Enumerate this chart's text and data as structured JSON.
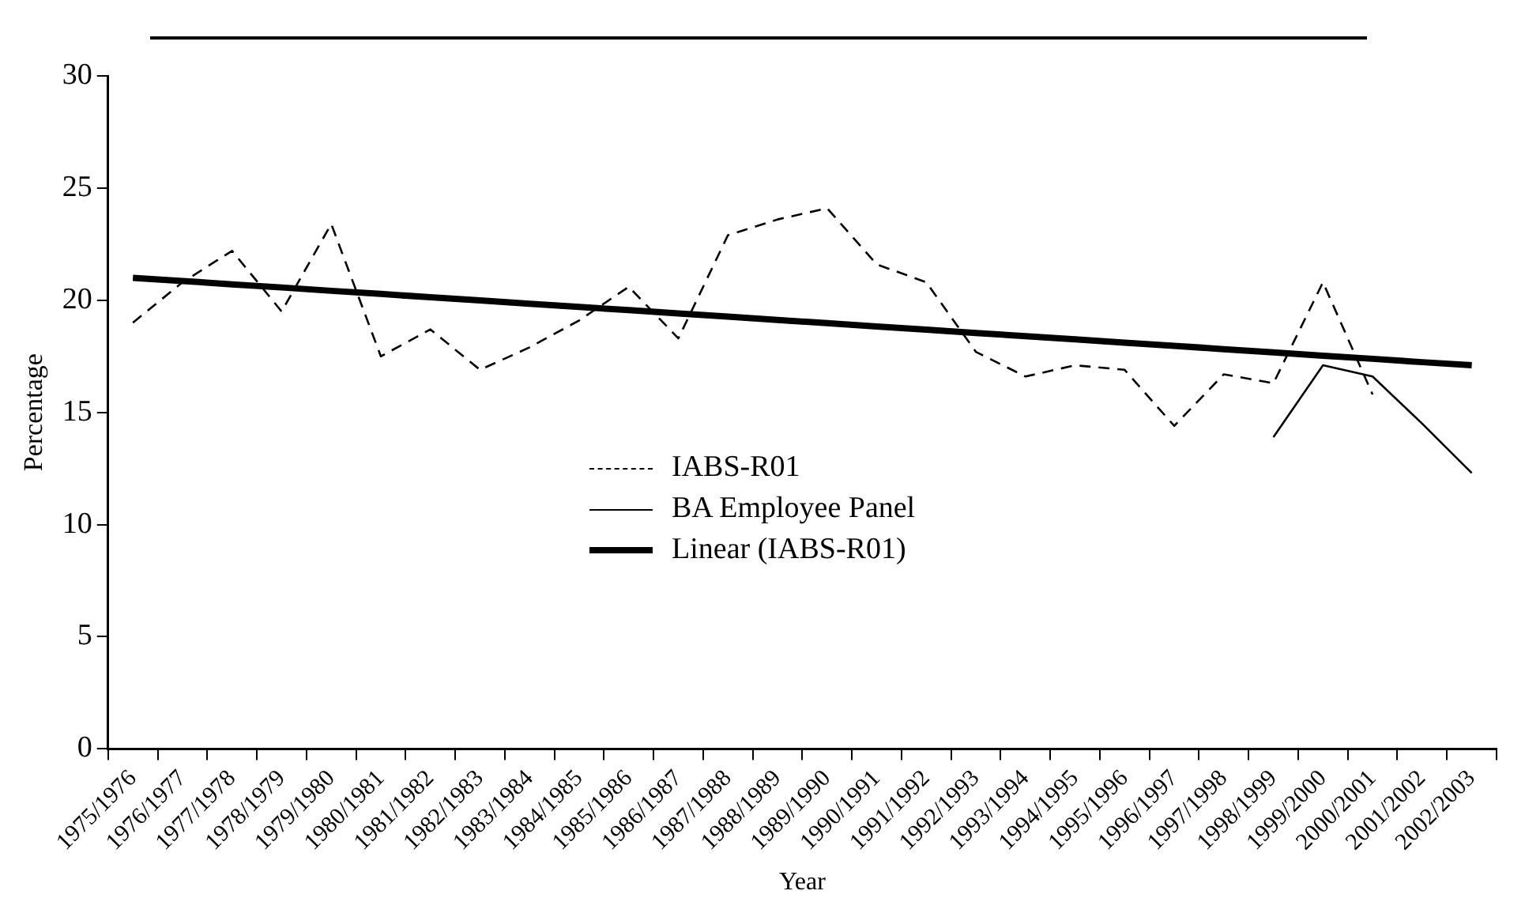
{
  "chart_data": {
    "type": "line",
    "xlabel": "Year",
    "ylabel": "Percentage",
    "categories": [
      "1975/1976",
      "1976/1977",
      "1977/1978",
      "1978/1979",
      "1979/1980",
      "1980/1981",
      "1981/1982",
      "1982/1983",
      "1983/1984",
      "1984/1985",
      "1985/1986",
      "1986/1987",
      "1987/1988",
      "1988/1989",
      "1989/1990",
      "1990/1991",
      "1991/1992",
      "1992/1993",
      "1993/1994",
      "1994/1995",
      "1995/1996",
      "1996/1997",
      "1997/1998",
      "1998/1999",
      "1999/2000",
      "2000/2001",
      "2001/2002",
      "2002/2003"
    ],
    "series": [
      {
        "name": "IABS-R01",
        "color": "#000000",
        "line_style": "dashed",
        "values": [
          19.0,
          20.8,
          22.2,
          19.5,
          23.4,
          17.5,
          18.7,
          16.9,
          17.9,
          19.1,
          20.6,
          18.3,
          22.9,
          23.6,
          24.1,
          21.6,
          20.8,
          17.7,
          16.6,
          17.1,
          16.9,
          14.4,
          16.7,
          16.3,
          20.8,
          15.8,
          null,
          null
        ]
      },
      {
        "name": "BA Employee Panel",
        "color": "#000000",
        "line_style": "solid",
        "values": [
          null,
          null,
          null,
          null,
          null,
          null,
          null,
          null,
          null,
          null,
          null,
          null,
          null,
          null,
          null,
          null,
          null,
          null,
          null,
          null,
          null,
          null,
          null,
          13.9,
          17.1,
          16.6,
          14.5,
          12.3
        ]
      },
      {
        "name": "Linear (IABS-R01)",
        "type": "line",
        "color": "#000000",
        "line_style": "solid",
        "values": [
          21.0,
          20.86,
          20.71,
          20.57,
          20.42,
          20.28,
          20.13,
          19.99,
          19.84,
          19.7,
          19.56,
          19.41,
          19.27,
          19.12,
          18.98,
          18.83,
          18.69,
          18.54,
          18.4,
          18.26,
          18.11,
          17.97,
          17.82,
          17.68,
          17.53,
          17.39,
          17.24,
          17.1
        ]
      }
    ],
    "ylim": [
      0,
      30
    ],
    "yticks": [
      0,
      5,
      10,
      15,
      20,
      25,
      30
    ],
    "grid": false,
    "legend": "center",
    "marker": "none"
  }
}
